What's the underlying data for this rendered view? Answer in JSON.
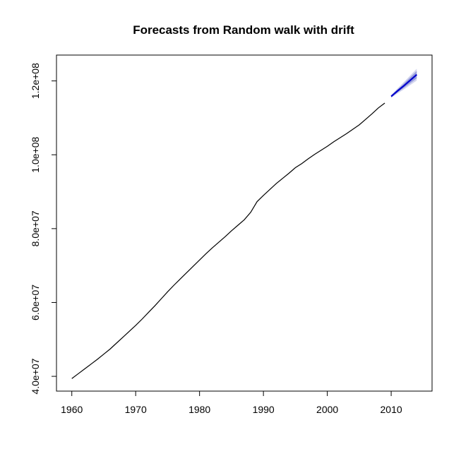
{
  "chart_data": {
    "type": "line",
    "title": "Forecasts from Random walk with drift",
    "xlabel": "",
    "ylabel": "",
    "xlim": [
      1957.6,
      2016.4
    ],
    "ylim": [
      36000000,
      127000000
    ],
    "x_ticks": [
      1960,
      1970,
      1980,
      1990,
      2000,
      2010
    ],
    "x_tick_labels": [
      "1960",
      "1970",
      "1980",
      "1990",
      "2000",
      "2010"
    ],
    "y_ticks": [
      40000000,
      60000000,
      80000000,
      100000000,
      120000000
    ],
    "y_tick_labels": [
      "4.0e+07",
      "6.0e+07",
      "8.0e+07",
      "1.0e+08",
      "1.2e+08"
    ],
    "grid": false,
    "colors": {
      "history": "#000000",
      "forecast": "#0000cd",
      "interval_80": "#9aa0dc",
      "interval_95": "#d4d6ee"
    },
    "series": [
      {
        "x": [
          1960,
          1961,
          1962,
          1963,
          1964,
          1965,
          1966,
          1967,
          1968,
          1969,
          1970,
          1971,
          1972,
          1973,
          1974,
          1975,
          1976,
          1977,
          1978,
          1979,
          1980,
          1981,
          1982,
          1983,
          1984,
          1985,
          1986,
          1987,
          1988,
          1989,
          1990,
          1991,
          1992,
          1993,
          1994,
          1995,
          1996,
          1997,
          1998,
          1999,
          2000,
          2001,
          2002,
          2003,
          2004,
          2005,
          2006,
          2007,
          2008,
          2009
        ],
        "values": [
          39400000,
          40700000,
          42000000,
          43300000,
          44600000,
          46000000,
          47400000,
          49000000,
          50600000,
          52200000,
          53800000,
          55500000,
          57300000,
          59100000,
          61000000,
          62900000,
          64700000,
          66400000,
          68100000,
          69800000,
          71500000,
          73200000,
          74800000,
          76300000,
          77800000,
          79400000,
          80900000,
          82400000,
          84400000,
          87300000,
          89000000,
          90600000,
          92200000,
          93600000,
          95000000,
          96500000,
          97600000,
          98900000,
          100100000,
          101200000,
          102300000,
          103500000,
          104600000,
          105700000,
          106900000,
          108100000,
          109600000,
          111100000,
          112700000,
          114000000
        ]
      },
      {
        "x": [
          2010,
          2011,
          2012,
          2013,
          2014
        ],
        "values": [
          115800000,
          117300000,
          118700000,
          120200000,
          121700000
        ],
        "lo80": [
          115600000,
          116900000,
          118100000,
          119400000,
          120700000
        ],
        "hi80": [
          116000000,
          117700000,
          119300000,
          121000000,
          122700000
        ],
        "lo95": [
          115400000,
          116600000,
          117700000,
          118900000,
          120100000
        ],
        "hi95": [
          116200000,
          118000000,
          119700000,
          121500000,
          123300000
        ]
      }
    ]
  }
}
